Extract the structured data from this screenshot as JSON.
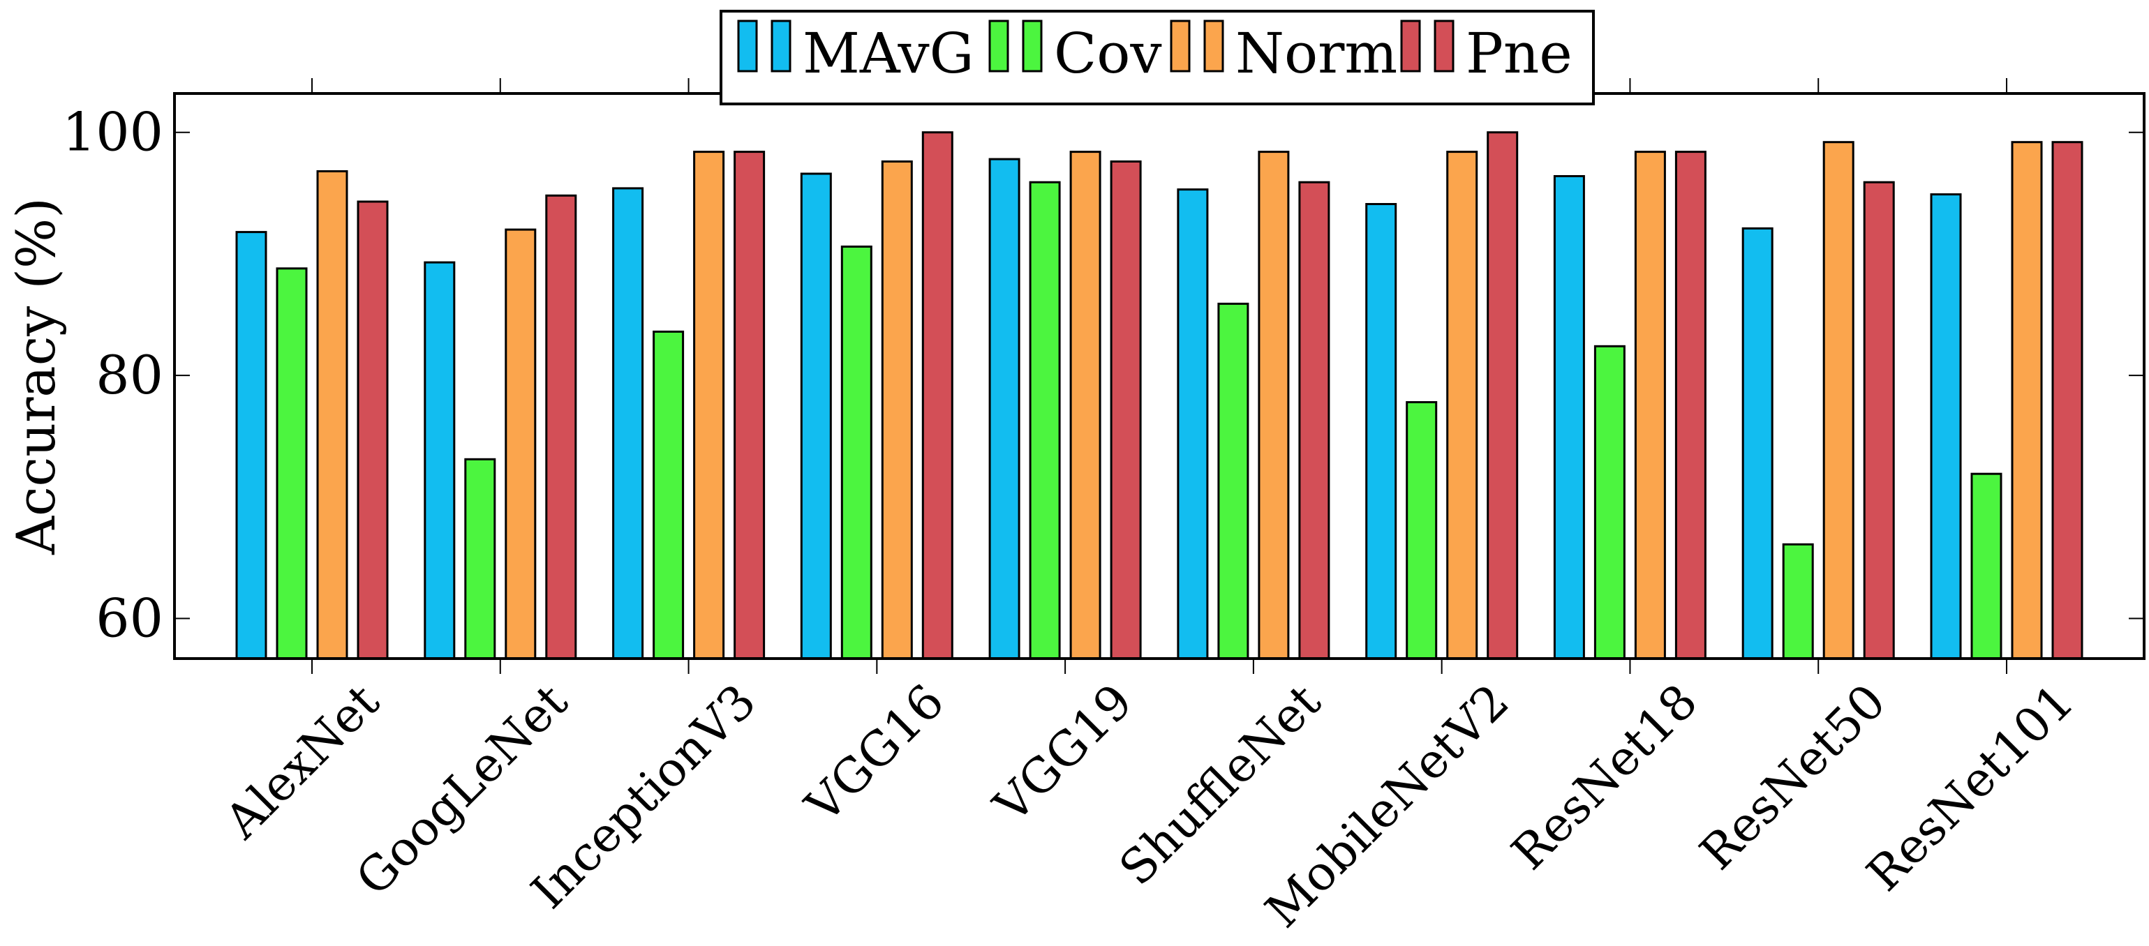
{
  "chart_data": {
    "type": "bar",
    "title": "",
    "xlabel": "",
    "ylabel": "Accuracy (%)",
    "ylim": [
      56.7,
      103.2
    ],
    "yticks": [
      60,
      80,
      100
    ],
    "grid": false,
    "legend_position": "top-center",
    "categories": [
      "AlexNet",
      "GoogLeNet",
      "InceptionV3",
      "VGG16",
      "VGG19",
      "ShuffleNet",
      "MobileNetV2",
      "ResNet18",
      "ResNet50",
      "ResNet101"
    ],
    "series": [
      {
        "name": "MAvG",
        "color": "#12bdf0",
        "values": [
          91.8,
          89.3,
          95.4,
          96.6,
          97.8,
          95.3,
          94.1,
          96.4,
          92.1,
          94.9
        ]
      },
      {
        "name": "Cov",
        "color": "#4cf53f",
        "values": [
          88.8,
          73.1,
          83.6,
          90.6,
          95.9,
          85.9,
          77.8,
          82.4,
          66.1,
          71.9
        ]
      },
      {
        "name": "Norm",
        "color": "#fba54d",
        "values": [
          96.8,
          92.0,
          98.4,
          97.6,
          98.4,
          98.4,
          98.4,
          98.4,
          99.2,
          99.2
        ]
      },
      {
        "name": "Pne",
        "color": "#d34f57",
        "values": [
          94.3,
          94.8,
          98.4,
          100.0,
          97.6,
          95.9,
          100.0,
          98.4,
          95.9,
          99.2
        ]
      }
    ]
  }
}
